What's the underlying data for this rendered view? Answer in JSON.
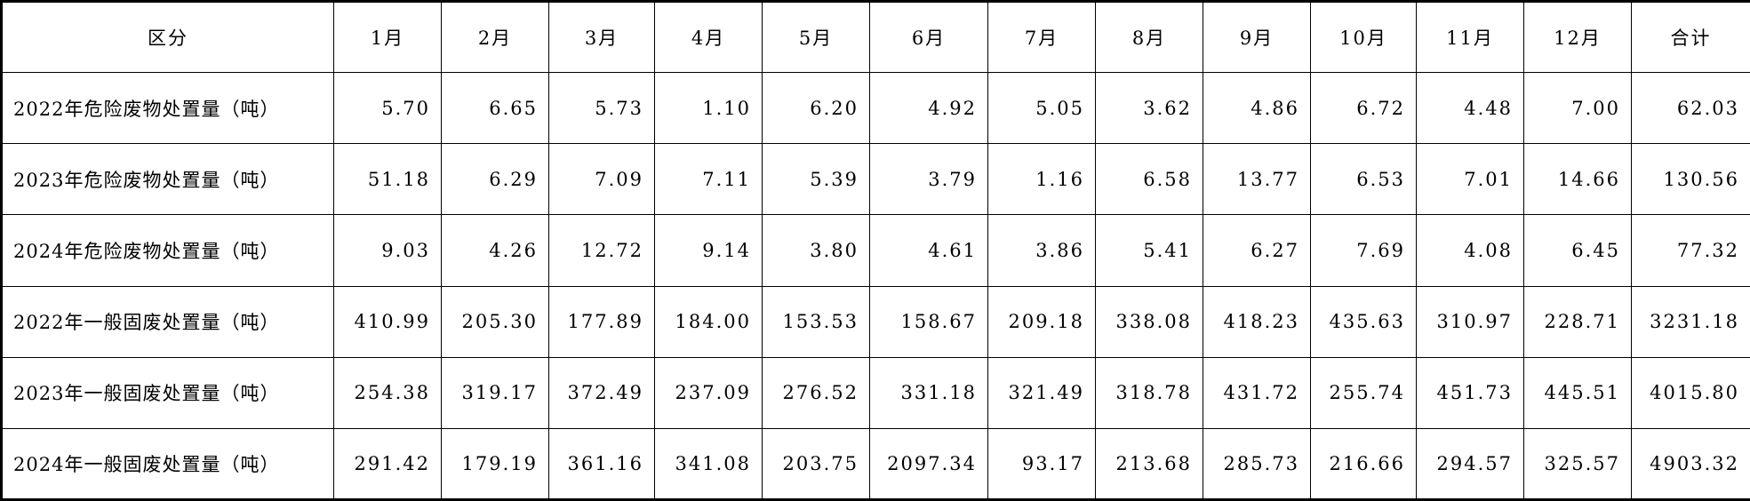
{
  "table": {
    "header": [
      "区分",
      "1月",
      "2月",
      "3月",
      "4月",
      "5月",
      "6月",
      "7月",
      "8月",
      "9月",
      "10月",
      "11月",
      "12月",
      "合计"
    ],
    "rows": [
      [
        "2022年危险废物处置量（吨）",
        "5.70",
        "6.65",
        "5.73",
        "1.10",
        "6.20",
        "4.92",
        "5.05",
        "3.62",
        "4.86",
        "6.72",
        "4.48",
        "7.00",
        "62.03"
      ],
      [
        "2023年危险废物处置量（吨）",
        "51.18",
        "6.29",
        "7.09",
        "7.11",
        "5.39",
        "3.79",
        "1.16",
        "6.58",
        "13.77",
        "6.53",
        "7.01",
        "14.66",
        "130.56"
      ],
      [
        "2024年危险废物处置量（吨）",
        "9.03",
        "4.26",
        "12.72",
        "9.14",
        "3.80",
        "4.61",
        "3.86",
        "5.41",
        "6.27",
        "7.69",
        "4.08",
        "6.45",
        "77.32"
      ],
      [
        "2022年一般固废处置量（吨）",
        "410.99",
        "205.30",
        "177.89",
        "184.00",
        "153.53",
        "158.67",
        "209.18",
        "338.08",
        "418.23",
        "435.63",
        "310.97",
        "228.71",
        "3231.18"
      ],
      [
        "2023年一般固废处置量（吨）",
        "254.38",
        "319.17",
        "372.49",
        "237.09",
        "276.52",
        "331.18",
        "321.49",
        "318.78",
        "431.72",
        "255.74",
        "451.73",
        "445.51",
        "4015.80"
      ],
      [
        "2024年一般固废处置量（吨）",
        "291.42",
        "179.19",
        "361.16",
        "341.08",
        "203.75",
        "2097.34",
        "93.17",
        "213.68",
        "285.73",
        "216.66",
        "294.57",
        "325.57",
        "4903.32"
      ]
    ]
  }
}
